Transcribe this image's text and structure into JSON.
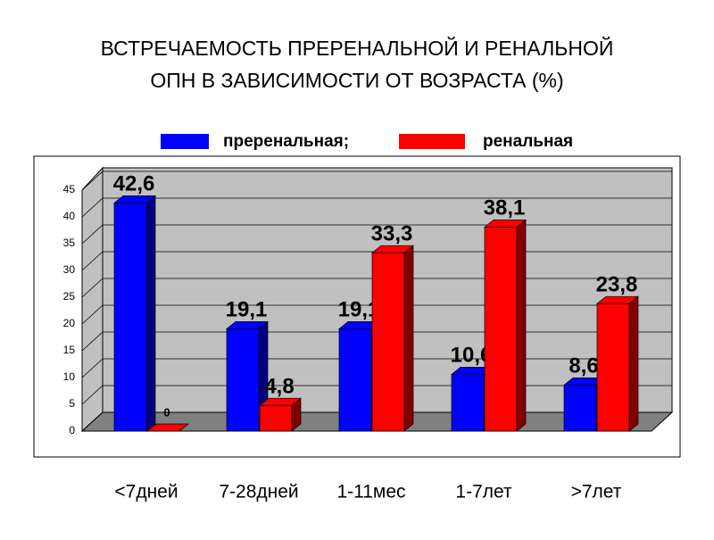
{
  "chart_data": {
    "type": "bar3d",
    "title": [
      "ВСТРЕЧАЕМОСТЬ ПРЕРЕНАЛЬНОЙ И РЕНАЛЬНОЙ",
      "ОПН В ЗАВИСИМОСТИ ОТ ВОЗРАСТА (%)"
    ],
    "categories": [
      "<7дней",
      "7-28дней",
      "1-11мес",
      "1-7лет",
      ">7лет"
    ],
    "series": [
      {
        "name": "преренальная;",
        "color": "#0000ff",
        "values": [
          42.6,
          19.1,
          19.1,
          10.6,
          8.6
        ],
        "value_labels": [
          "42,6",
          "19,1",
          "19,1",
          "10,6",
          "8,6"
        ]
      },
      {
        "name": "ренальная",
        "color": "#ff0000",
        "values": [
          0,
          4.8,
          33.3,
          38.1,
          23.8
        ],
        "value_labels": [
          "0",
          "4,8",
          "33,3",
          "38,1",
          "23,8"
        ]
      }
    ],
    "ylim": [
      0,
      45
    ],
    "yticks": [
      0,
      5,
      10,
      15,
      20,
      25,
      30,
      35,
      40,
      45
    ],
    "grid": true,
    "legend": "top"
  }
}
